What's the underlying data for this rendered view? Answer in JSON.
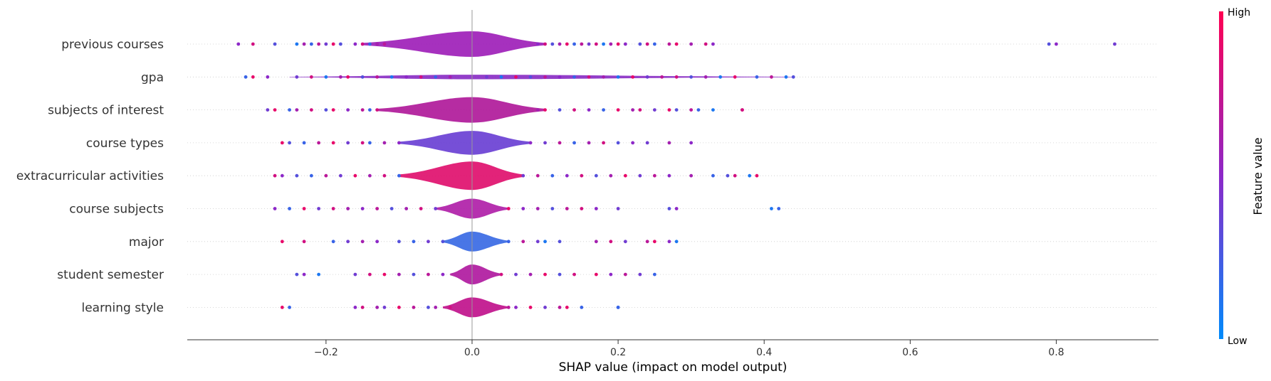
{
  "chart_data": {
    "type": "scatter",
    "subtype": "shap-violin-summary",
    "title": "",
    "xlabel": "SHAP value (impact on model output)",
    "xlim": [
      -0.39,
      0.94
    ],
    "xticks": [
      -0.2,
      0.0,
      0.2,
      0.4,
      0.6,
      0.8
    ],
    "xtick_labels": [
      "−0.2",
      "0.0",
      "0.2",
      "0.4",
      "0.6",
      "0.8"
    ],
    "zero_line": true,
    "colorbar": {
      "title": "Feature value",
      "high_label": "High",
      "low_label": "Low",
      "low_color": "#008bfb",
      "high_color": "#ff0052"
    },
    "features": [
      {
        "name": "previous courses",
        "body_range": [
          -0.15,
          0.1
        ],
        "body_width": 0.45,
        "body_color": "#9e1fb8",
        "points": [
          -0.32,
          -0.3,
          -0.27,
          -0.24,
          -0.23,
          -0.22,
          -0.21,
          -0.2,
          -0.19,
          -0.18,
          -0.16,
          -0.15,
          -0.14,
          -0.13,
          -0.12,
          0.09,
          0.1,
          0.11,
          0.12,
          0.13,
          0.14,
          0.15,
          0.16,
          0.17,
          0.18,
          0.19,
          0.2,
          0.21,
          0.23,
          0.24,
          0.25,
          0.27,
          0.28,
          0.3,
          0.32,
          0.33,
          0.79,
          0.8,
          0.88
        ],
        "point_values": [
          0.5,
          0.8,
          0.3,
          0.1,
          0.6,
          0.2,
          0.7,
          0.4,
          0.9,
          0.3,
          0.5,
          0.8,
          0.2,
          0.6,
          0.7,
          0.5,
          0.8,
          0.3,
          0.6,
          0.9,
          0.2,
          0.7,
          0.4,
          0.8,
          0.1,
          0.6,
          0.9,
          0.5,
          0.3,
          0.8,
          0.2,
          0.7,
          0.9,
          0.6,
          0.8,
          0.5,
          0.3,
          0.5,
          0.4
        ]
      },
      {
        "name": "gpa",
        "body_range": [
          -0.25,
          0.44
        ],
        "body_width": 0.08,
        "body_color": "#8a2fc4",
        "points": [
          -0.31,
          -0.3,
          -0.28,
          -0.24,
          -0.22,
          -0.2,
          -0.18,
          -0.17,
          -0.15,
          -0.13,
          -0.11,
          -0.09,
          -0.07,
          -0.05,
          -0.03,
          0.02,
          0.04,
          0.06,
          0.08,
          0.1,
          0.12,
          0.14,
          0.16,
          0.18,
          0.2,
          0.22,
          0.24,
          0.26,
          0.28,
          0.3,
          0.32,
          0.34,
          0.36,
          0.39,
          0.41,
          0.43,
          0.44
        ],
        "point_values": [
          0.2,
          0.9,
          0.5,
          0.4,
          0.8,
          0.1,
          0.6,
          0.9,
          0.3,
          0.7,
          0.1,
          0.5,
          0.8,
          0.2,
          0.6,
          0.4,
          0.1,
          0.9,
          0.3,
          0.7,
          0.5,
          0.2,
          0.8,
          0.6,
          0.1,
          0.9,
          0.4,
          0.7,
          0.8,
          0.3,
          0.6,
          0.1,
          0.9,
          0.2,
          0.7,
          0.1,
          0.3
        ]
      },
      {
        "name": "subjects of interest",
        "body_range": [
          -0.13,
          0.1
        ],
        "body_width": 0.45,
        "body_color": "#b01a9a",
        "points": [
          -0.28,
          -0.27,
          -0.25,
          -0.24,
          -0.22,
          -0.2,
          -0.19,
          -0.17,
          -0.15,
          -0.14,
          -0.13,
          0.09,
          0.1,
          0.12,
          0.14,
          0.16,
          0.18,
          0.2,
          0.22,
          0.23,
          0.25,
          0.27,
          0.28,
          0.3,
          0.31,
          0.33,
          0.37,
          0.37
        ],
        "point_values": [
          0.4,
          0.9,
          0.2,
          0.6,
          0.8,
          0.3,
          0.9,
          0.5,
          0.7,
          0.2,
          0.8,
          0.6,
          0.9,
          0.3,
          0.8,
          0.5,
          0.2,
          0.9,
          0.6,
          0.8,
          0.4,
          0.9,
          0.3,
          0.7,
          0.2,
          0.1,
          0.9,
          0.8
        ]
      },
      {
        "name": "course types",
        "body_range": [
          -0.1,
          0.08
        ],
        "body_width": 0.42,
        "body_color": "#6a40d4",
        "points": [
          -0.26,
          -0.25,
          -0.23,
          -0.21,
          -0.19,
          -0.17,
          -0.15,
          -0.14,
          -0.12,
          -0.1,
          0.08,
          0.1,
          0.12,
          0.14,
          0.16,
          0.18,
          0.2,
          0.22,
          0.24,
          0.27,
          0.3
        ],
        "point_values": [
          0.9,
          0.3,
          0.2,
          0.7,
          0.9,
          0.4,
          0.8,
          0.2,
          0.6,
          0.5,
          0.5,
          0.4,
          0.7,
          0.2,
          0.6,
          0.8,
          0.3,
          0.5,
          0.4,
          0.6,
          0.5
        ]
      },
      {
        "name": "extracurricular activities",
        "body_range": [
          -0.1,
          0.07
        ],
        "body_width": 0.5,
        "body_color": "#e0106e",
        "points": [
          -0.27,
          -0.26,
          -0.24,
          -0.22,
          -0.2,
          -0.18,
          -0.16,
          -0.14,
          -0.12,
          -0.1,
          0.07,
          0.09,
          0.11,
          0.13,
          0.15,
          0.17,
          0.19,
          0.21,
          0.23,
          0.25,
          0.27,
          0.3,
          0.33,
          0.35,
          0.36,
          0.38,
          0.39
        ],
        "point_values": [
          0.8,
          0.5,
          0.3,
          0.2,
          0.7,
          0.4,
          0.9,
          0.6,
          0.8,
          0.2,
          0.4,
          0.7,
          0.2,
          0.5,
          0.8,
          0.3,
          0.6,
          0.9,
          0.4,
          0.7,
          0.5,
          0.6,
          0.2,
          0.3,
          0.8,
          0.1,
          0.9
        ]
      },
      {
        "name": "course subjects",
        "body_range": [
          -0.05,
          0.05
        ],
        "body_width": 0.35,
        "body_color": "#b01fa8",
        "points": [
          -0.27,
          -0.25,
          -0.23,
          -0.21,
          -0.19,
          -0.17,
          -0.15,
          -0.13,
          -0.11,
          -0.09,
          -0.07,
          -0.05,
          0.05,
          0.07,
          0.09,
          0.11,
          0.13,
          0.15,
          0.17,
          0.2,
          0.27,
          0.28,
          0.41,
          0.42
        ],
        "point_values": [
          0.5,
          0.2,
          0.9,
          0.4,
          0.8,
          0.6,
          0.5,
          0.7,
          0.3,
          0.6,
          0.8,
          0.4,
          0.9,
          0.5,
          0.6,
          0.3,
          0.7,
          0.8,
          0.5,
          0.4,
          0.3,
          0.5,
          0.1,
          0.2
        ]
      },
      {
        "name": "major",
        "body_range": [
          -0.04,
          0.05
        ],
        "body_width": 0.35,
        "body_color": "#3a6ae4",
        "points": [
          -0.26,
          -0.23,
          -0.19,
          -0.17,
          -0.15,
          -0.13,
          -0.1,
          -0.08,
          -0.06,
          -0.04,
          0.05,
          0.07,
          0.09,
          0.1,
          0.12,
          0.17,
          0.19,
          0.21,
          0.24,
          0.25,
          0.27,
          0.28
        ],
        "point_values": [
          0.9,
          0.8,
          0.2,
          0.4,
          0.6,
          0.5,
          0.3,
          0.2,
          0.4,
          0.3,
          0.2,
          0.7,
          0.4,
          0.1,
          0.3,
          0.6,
          0.8,
          0.4,
          0.7,
          0.9,
          0.5,
          0.1
        ]
      },
      {
        "name": "student semester",
        "body_range": [
          -0.03,
          0.04
        ],
        "body_width": 0.35,
        "body_color": "#b01aa0",
        "points": [
          -0.24,
          -0.23,
          -0.21,
          -0.16,
          -0.14,
          -0.12,
          -0.1,
          -0.08,
          -0.06,
          -0.04,
          0.04,
          0.06,
          0.08,
          0.1,
          0.12,
          0.14,
          0.17,
          0.19,
          0.21,
          0.23,
          0.25
        ],
        "point_values": [
          0.3,
          0.5,
          0.1,
          0.4,
          0.8,
          0.9,
          0.6,
          0.3,
          0.7,
          0.5,
          0.8,
          0.4,
          0.6,
          0.9,
          0.3,
          0.8,
          0.9,
          0.5,
          0.7,
          0.4,
          0.2
        ]
      },
      {
        "name": "learning style",
        "body_range": [
          -0.04,
          0.05
        ],
        "body_width": 0.35,
        "body_color": "#c0128c",
        "points": [
          -0.26,
          -0.25,
          -0.16,
          -0.15,
          -0.13,
          -0.12,
          -0.1,
          -0.08,
          -0.06,
          -0.05,
          -0.03,
          0.05,
          0.06,
          0.08,
          0.1,
          0.12,
          0.13,
          0.15,
          0.2,
          0.2
        ],
        "point_values": [
          0.9,
          0.2,
          0.5,
          0.8,
          0.6,
          0.4,
          0.9,
          0.7,
          0.3,
          0.6,
          0.8,
          0.7,
          0.5,
          0.9,
          0.4,
          0.7,
          0.9,
          0.2,
          0.1,
          0.2
        ]
      }
    ]
  }
}
